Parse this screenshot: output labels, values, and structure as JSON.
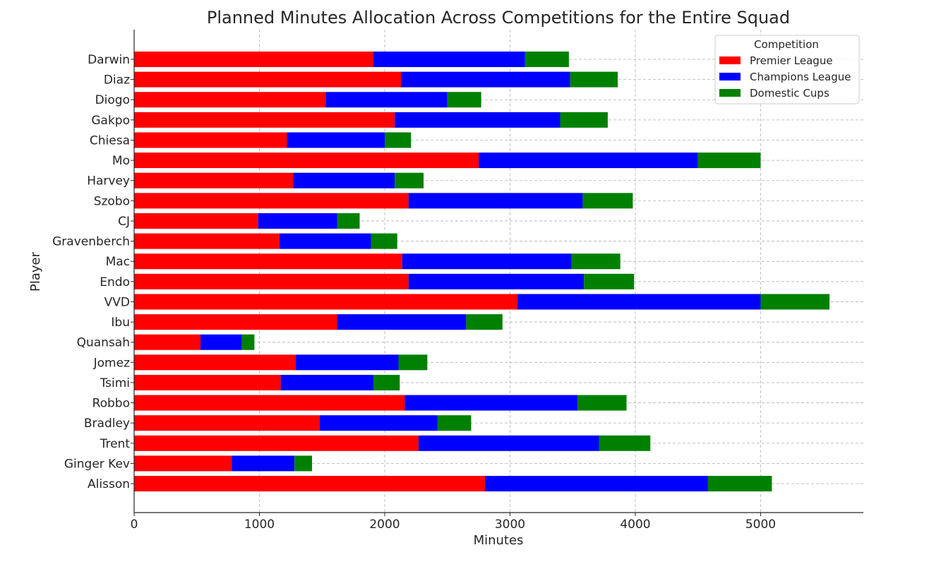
{
  "chart_data": {
    "type": "bar",
    "orientation": "horizontal",
    "stacked": true,
    "title": "Planned Minutes Allocation Across Competitions for the Entire Squad",
    "xlabel": "Minutes",
    "ylabel": "Player",
    "xlim": [
      0,
      5820
    ],
    "xticks": [
      0,
      1000,
      2000,
      3000,
      4000,
      5000
    ],
    "grid": true,
    "legend": {
      "title": "Competition",
      "placement": "top-right"
    },
    "categories": [
      "Darwin",
      "Diaz",
      "Diogo",
      "Gakpo",
      "Chiesa",
      "Mo",
      "Harvey",
      "Szobo",
      "CJ",
      "Gravenberch",
      "Mac",
      "Endo",
      "VVD",
      "Ibu",
      "Quansah",
      "Jomez",
      "Tsimi",
      "Robbo",
      "Bradley",
      "Trent",
      "Ginger Kev",
      "Alisson"
    ],
    "series": [
      {
        "name": "Premier League",
        "color": "#ff0000",
        "values": [
          1910,
          2130,
          1530,
          2080,
          1220,
          2750,
          1270,
          2190,
          990,
          1160,
          2140,
          2190,
          3060,
          1620,
          530,
          1290,
          1170,
          2160,
          1480,
          2270,
          780,
          2800
        ]
      },
      {
        "name": "Champions League",
        "color": "#0000ff",
        "values": [
          1210,
          1350,
          970,
          1320,
          780,
          1750,
          810,
          1390,
          630,
          730,
          1350,
          1400,
          1940,
          1030,
          330,
          820,
          740,
          1380,
          940,
          1440,
          500,
          1780
        ]
      },
      {
        "name": "Domestic Cups",
        "color": "#008000",
        "values": [
          350,
          380,
          270,
          380,
          210,
          500,
          230,
          400,
          180,
          210,
          390,
          400,
          550,
          290,
          100,
          230,
          210,
          390,
          270,
          410,
          140,
          510
        ]
      }
    ]
  }
}
